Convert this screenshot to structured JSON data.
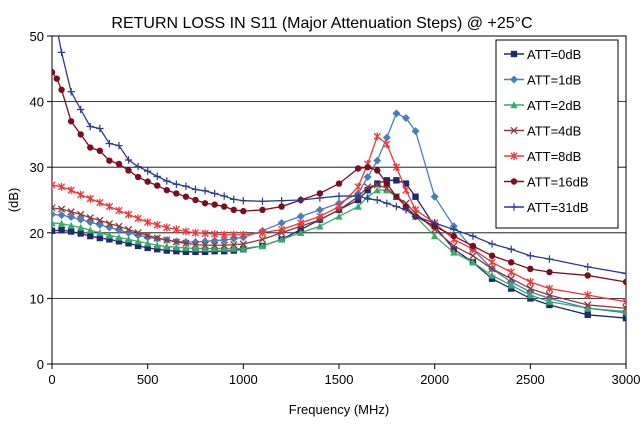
{
  "chart_data": {
    "type": "line",
    "title": "RETURN LOSS IN S11 (Major Attenuation Steps) @ +25°C",
    "xlabel": "Frequency (MHz)",
    "ylabel": "(dB)",
    "xlim": [
      0,
      3000
    ],
    "ylim": [
      0,
      50
    ],
    "x_ticks": [
      "0",
      "500",
      "1000",
      "1500",
      "2000",
      "2500",
      "3000"
    ],
    "y_ticks": [
      "0",
      "10",
      "20",
      "30",
      "40",
      "50"
    ],
    "grid": "horizontal",
    "legend_position": "top-right",
    "series": [
      {
        "name": "ATT=0dB",
        "color": "#1f2a6e",
        "marker": "square",
        "points": [
          [
            0,
            20.3
          ],
          [
            50,
            20.4
          ],
          [
            100,
            20.2
          ],
          [
            150,
            19.9
          ],
          [
            200,
            19.5
          ],
          [
            250,
            19.2
          ],
          [
            300,
            19.0
          ],
          [
            350,
            18.7
          ],
          [
            400,
            18.4
          ],
          [
            450,
            18.0
          ],
          [
            500,
            17.7
          ],
          [
            550,
            17.5
          ],
          [
            600,
            17.3
          ],
          [
            650,
            17.2
          ],
          [
            700,
            17.1
          ],
          [
            750,
            17.1
          ],
          [
            800,
            17.1
          ],
          [
            850,
            17.2
          ],
          [
            900,
            17.2
          ],
          [
            950,
            17.3
          ],
          [
            1000,
            17.5
          ],
          [
            1100,
            18.0
          ],
          [
            1200,
            19.0
          ],
          [
            1300,
            20.5
          ],
          [
            1400,
            22.0
          ],
          [
            1500,
            23.5
          ],
          [
            1600,
            25.0
          ],
          [
            1650,
            26.5
          ],
          [
            1700,
            27.5
          ],
          [
            1750,
            28.0
          ],
          [
            1800,
            28.0
          ],
          [
            1850,
            27.5
          ],
          [
            1900,
            25.5
          ],
          [
            2000,
            21.0
          ],
          [
            2100,
            17.5
          ],
          [
            2200,
            15.5
          ],
          [
            2300,
            13.0
          ],
          [
            2400,
            11.5
          ],
          [
            2500,
            10.0
          ],
          [
            2600,
            9.0
          ],
          [
            2800,
            7.5
          ],
          [
            3000,
            7.0
          ]
        ]
      },
      {
        "name": "ATT=1dB",
        "color": "#4a7ebb",
        "marker": "diamond",
        "points": [
          [
            0,
            22.8
          ],
          [
            50,
            22.7
          ],
          [
            100,
            22.4
          ],
          [
            150,
            22.0
          ],
          [
            200,
            21.6
          ],
          [
            250,
            21.2
          ],
          [
            300,
            20.8
          ],
          [
            350,
            20.4
          ],
          [
            400,
            20.0
          ],
          [
            450,
            19.6
          ],
          [
            500,
            19.3
          ],
          [
            550,
            19.1
          ],
          [
            600,
            18.9
          ],
          [
            650,
            18.7
          ],
          [
            700,
            18.6
          ],
          [
            750,
            18.6
          ],
          [
            800,
            18.7
          ],
          [
            850,
            18.8
          ],
          [
            900,
            18.9
          ],
          [
            950,
            19.1
          ],
          [
            1000,
            19.3
          ],
          [
            1100,
            20.3
          ],
          [
            1200,
            21.5
          ],
          [
            1300,
            22.5
          ],
          [
            1400,
            23.5
          ],
          [
            1500,
            24.5
          ],
          [
            1600,
            26.0
          ],
          [
            1650,
            28.5
          ],
          [
            1700,
            31.0
          ],
          [
            1750,
            34.5
          ],
          [
            1800,
            38.2
          ],
          [
            1850,
            37.5
          ],
          [
            1900,
            35.5
          ],
          [
            2000,
            25.5
          ],
          [
            2100,
            21.0
          ],
          [
            2200,
            17.5
          ],
          [
            2300,
            14.5
          ],
          [
            2400,
            12.5
          ],
          [
            2500,
            11.0
          ],
          [
            2600,
            10.0
          ],
          [
            2800,
            8.5
          ],
          [
            3000,
            7.8
          ]
        ]
      },
      {
        "name": "ATT=2dB",
        "color": "#3aaa6a",
        "marker": "triangle",
        "points": [
          [
            0,
            21.5
          ],
          [
            50,
            21.4
          ],
          [
            100,
            21.1
          ],
          [
            150,
            20.8
          ],
          [
            200,
            20.4
          ],
          [
            250,
            20.0
          ],
          [
            300,
            19.6
          ],
          [
            350,
            19.3
          ],
          [
            400,
            19.0
          ],
          [
            450,
            18.7
          ],
          [
            500,
            18.4
          ],
          [
            550,
            18.1
          ],
          [
            600,
            17.9
          ],
          [
            650,
            17.8
          ],
          [
            700,
            17.7
          ],
          [
            750,
            17.6
          ],
          [
            800,
            17.6
          ],
          [
            850,
            17.6
          ],
          [
            900,
            17.6
          ],
          [
            950,
            17.6
          ],
          [
            1000,
            17.6
          ],
          [
            1100,
            18.0
          ],
          [
            1200,
            19.0
          ],
          [
            1300,
            20.0
          ],
          [
            1400,
            21.0
          ],
          [
            1500,
            22.5
          ],
          [
            1600,
            24.0
          ],
          [
            1650,
            25.5
          ],
          [
            1700,
            26.5
          ],
          [
            1750,
            26.5
          ],
          [
            1800,
            25.5
          ],
          [
            1850,
            24.0
          ],
          [
            1900,
            22.5
          ],
          [
            2000,
            19.5
          ],
          [
            2100,
            17.0
          ],
          [
            2200,
            15.5
          ],
          [
            2300,
            13.5
          ],
          [
            2400,
            12.0
          ],
          [
            2500,
            10.5
          ],
          [
            2600,
            9.5
          ],
          [
            2800,
            8.5
          ],
          [
            3000,
            8.0
          ]
        ]
      },
      {
        "name": "ATT=4dB",
        "color": "#8b3a3a",
        "marker": "x",
        "points": [
          [
            0,
            23.8
          ],
          [
            50,
            23.6
          ],
          [
            100,
            23.2
          ],
          [
            150,
            22.8
          ],
          [
            200,
            22.3
          ],
          [
            250,
            21.9
          ],
          [
            300,
            21.4
          ],
          [
            350,
            21.0
          ],
          [
            400,
            20.5
          ],
          [
            450,
            20.0
          ],
          [
            500,
            19.6
          ],
          [
            550,
            19.2
          ],
          [
            600,
            18.9
          ],
          [
            650,
            18.6
          ],
          [
            700,
            18.4
          ],
          [
            750,
            18.2
          ],
          [
            800,
            18.1
          ],
          [
            850,
            18.1
          ],
          [
            900,
            18.1
          ],
          [
            950,
            18.2
          ],
          [
            1000,
            18.3
          ],
          [
            1100,
            19.0
          ],
          [
            1200,
            20.0
          ],
          [
            1300,
            21.0
          ],
          [
            1400,
            22.0
          ],
          [
            1500,
            23.5
          ],
          [
            1600,
            25.5
          ],
          [
            1650,
            27.0
          ],
          [
            1700,
            27.3
          ],
          [
            1750,
            26.8
          ],
          [
            1800,
            25.5
          ],
          [
            1850,
            24.5
          ],
          [
            1900,
            23.0
          ],
          [
            2000,
            20.5
          ],
          [
            2100,
            18.0
          ],
          [
            2200,
            16.5
          ],
          [
            2300,
            14.5
          ],
          [
            2400,
            13.0
          ],
          [
            2500,
            11.5
          ],
          [
            2600,
            10.5
          ],
          [
            2800,
            9.0
          ],
          [
            3000,
            8.5
          ]
        ]
      },
      {
        "name": "ATT=8dB",
        "color": "#e83a3a",
        "marker": "star",
        "points": [
          [
            0,
            27.3
          ],
          [
            50,
            27.0
          ],
          [
            100,
            26.5
          ],
          [
            150,
            25.8
          ],
          [
            200,
            25.2
          ],
          [
            250,
            24.6
          ],
          [
            300,
            24.0
          ],
          [
            350,
            23.4
          ],
          [
            400,
            22.8
          ],
          [
            450,
            22.2
          ],
          [
            500,
            21.6
          ],
          [
            550,
            21.2
          ],
          [
            600,
            20.8
          ],
          [
            650,
            20.5
          ],
          [
            700,
            20.2
          ],
          [
            750,
            20.0
          ],
          [
            800,
            19.9
          ],
          [
            850,
            19.8
          ],
          [
            900,
            19.7
          ],
          [
            950,
            19.7
          ],
          [
            1000,
            19.7
          ],
          [
            1100,
            20.0
          ],
          [
            1200,
            20.5
          ],
          [
            1300,
            21.5
          ],
          [
            1400,
            22.5
          ],
          [
            1500,
            24.0
          ],
          [
            1600,
            27.0
          ],
          [
            1650,
            30.5
          ],
          [
            1700,
            34.7
          ],
          [
            1750,
            33.5
          ],
          [
            1800,
            30.0
          ],
          [
            1850,
            26.5
          ],
          [
            1900,
            23.5
          ],
          [
            2000,
            21.5
          ],
          [
            2100,
            19.0
          ],
          [
            2200,
            17.5
          ],
          [
            2300,
            15.5
          ],
          [
            2400,
            14.0
          ],
          [
            2500,
            12.5
          ],
          [
            2600,
            11.5
          ],
          [
            2800,
            10.5
          ],
          [
            3000,
            9.5
          ]
        ]
      },
      {
        "name": "ATT=16dB",
        "color": "#7a0d1e",
        "marker": "circle",
        "points": [
          [
            0,
            44.5
          ],
          [
            25,
            43.5
          ],
          [
            50,
            41.8
          ],
          [
            100,
            37.0
          ],
          [
            150,
            35.0
          ],
          [
            200,
            33.0
          ],
          [
            250,
            32.5
          ],
          [
            300,
            31.0
          ],
          [
            350,
            30.5
          ],
          [
            400,
            29.5
          ],
          [
            450,
            28.5
          ],
          [
            500,
            27.8
          ],
          [
            550,
            27.2
          ],
          [
            600,
            26.5
          ],
          [
            650,
            26.0
          ],
          [
            700,
            25.5
          ],
          [
            750,
            25.0
          ],
          [
            800,
            24.5
          ],
          [
            850,
            24.3
          ],
          [
            900,
            24.0
          ],
          [
            950,
            23.5
          ],
          [
            1000,
            23.3
          ],
          [
            1100,
            23.5
          ],
          [
            1200,
            24.0
          ],
          [
            1300,
            25.0
          ],
          [
            1400,
            26.0
          ],
          [
            1500,
            27.5
          ],
          [
            1600,
            29.8
          ],
          [
            1650,
            30.0
          ],
          [
            1700,
            29.5
          ],
          [
            1750,
            27.5
          ],
          [
            1800,
            25.5
          ],
          [
            1850,
            24.0
          ],
          [
            1900,
            22.5
          ],
          [
            2000,
            21.0
          ],
          [
            2100,
            19.5
          ],
          [
            2200,
            18.0
          ],
          [
            2300,
            16.5
          ],
          [
            2400,
            15.5
          ],
          [
            2500,
            14.5
          ],
          [
            2600,
            14.0
          ],
          [
            2800,
            13.5
          ],
          [
            3000,
            12.5
          ]
        ]
      },
      {
        "name": "ATT=31dB",
        "color": "#2a3a8c",
        "marker": "plus",
        "points": [
          [
            0,
            55
          ],
          [
            20,
            52
          ],
          [
            50,
            47.5
          ],
          [
            100,
            41.5
          ],
          [
            150,
            38.8
          ],
          [
            200,
            36.2
          ],
          [
            250,
            35.9
          ],
          [
            300,
            33.6
          ],
          [
            350,
            33.3
          ],
          [
            400,
            31.1
          ],
          [
            450,
            30.1
          ],
          [
            500,
            29.4
          ],
          [
            550,
            28.6
          ],
          [
            600,
            27.9
          ],
          [
            650,
            27.4
          ],
          [
            700,
            27.1
          ],
          [
            750,
            26.6
          ],
          [
            800,
            26.4
          ],
          [
            850,
            26.0
          ],
          [
            900,
            25.6
          ],
          [
            950,
            25.1
          ],
          [
            1000,
            24.9
          ],
          [
            1100,
            24.8
          ],
          [
            1200,
            24.9
          ],
          [
            1300,
            25.0
          ],
          [
            1400,
            25.3
          ],
          [
            1500,
            25.6
          ],
          [
            1600,
            25.6
          ],
          [
            1650,
            25.2
          ],
          [
            1700,
            25.0
          ],
          [
            1750,
            24.5
          ],
          [
            1800,
            24.0
          ],
          [
            1850,
            23.5
          ],
          [
            1900,
            22.5
          ],
          [
            2000,
            21.5
          ],
          [
            2100,
            20.5
          ],
          [
            2200,
            19.5
          ],
          [
            2300,
            18.3
          ],
          [
            2400,
            17.5
          ],
          [
            2500,
            16.5
          ],
          [
            2600,
            16.0
          ],
          [
            2800,
            14.8
          ],
          [
            3000,
            13.8
          ]
        ]
      }
    ]
  }
}
